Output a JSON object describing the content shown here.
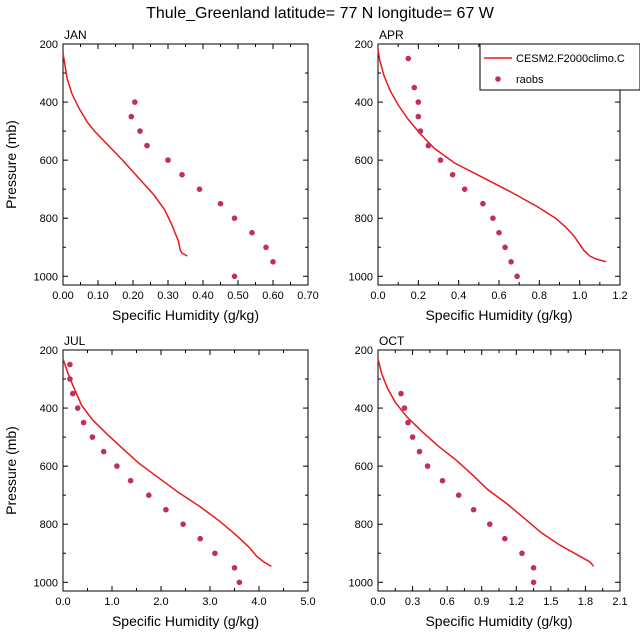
{
  "figure": {
    "title": "Thule_Greenland  latitude= 77 N longitude= 67 W"
  },
  "colors": {
    "model_line": "#e8191c",
    "raobs_marker": "#c0305a",
    "axes": "#000000"
  },
  "legend": {
    "placement": "top-right of APR panel",
    "model_label": "CESM2.F2000climo.C",
    "obs_label": "raobs"
  },
  "chart_data": [
    {
      "type": "line",
      "panel": "JAN",
      "title": "JAN",
      "xlabel": "Specific Humidity (g/kg)",
      "ylabel": "Pressure (mb)",
      "xlim": [
        0,
        0.7
      ],
      "ylim": [
        1030,
        200
      ],
      "y_inverted": true,
      "xticks": [
        "0.00",
        "0.10",
        "0.20",
        "0.30",
        "0.40",
        "0.50",
        "0.60",
        "0.70"
      ],
      "yticks": [
        "200",
        "400",
        "600",
        "800",
        "1000"
      ],
      "series": [
        {
          "name": "CESM2.F2000climo.C",
          "kind": "line",
          "points": [
            [
              0.0,
              230
            ],
            [
              0.005,
              270
            ],
            [
              0.012,
              320
            ],
            [
              0.025,
              370
            ],
            [
              0.045,
              420
            ],
            [
              0.07,
              470
            ],
            [
              0.09,
              500
            ],
            [
              0.13,
              550
            ],
            [
              0.17,
              600
            ],
            [
              0.2,
              640
            ],
            [
              0.23,
              680
            ],
            [
              0.26,
              720
            ],
            [
              0.29,
              770
            ],
            [
              0.31,
              820
            ],
            [
              0.33,
              880
            ],
            [
              0.335,
              910
            ],
            [
              0.34,
              920
            ],
            [
              0.355,
              930
            ]
          ]
        },
        {
          "name": "raobs",
          "kind": "markers",
          "points": [
            [
              0.205,
              400
            ],
            [
              0.195,
              450
            ],
            [
              0.22,
              500
            ],
            [
              0.24,
              550
            ],
            [
              0.3,
              600
            ],
            [
              0.34,
              650
            ],
            [
              0.39,
              700
            ],
            [
              0.45,
              750
            ],
            [
              0.49,
              800
            ],
            [
              0.54,
              850
            ],
            [
              0.58,
              900
            ],
            [
              0.6,
              950
            ],
            [
              0.49,
              1000
            ]
          ]
        }
      ]
    },
    {
      "type": "line",
      "panel": "APR",
      "title": "APR",
      "xlabel": "Specific Humidity (g/kg)",
      "ylabel": "",
      "xlim": [
        0,
        1.2
      ],
      "ylim": [
        1030,
        200
      ],
      "y_inverted": true,
      "xticks": [
        "0.0",
        "0.2",
        "0.4",
        "0.6",
        "0.8",
        "1.0",
        "1.2"
      ],
      "yticks": [
        "200",
        "400",
        "600",
        "800",
        "1000"
      ],
      "series": [
        {
          "name": "CESM2.F2000climo.C",
          "kind": "line",
          "points": [
            [
              0.0,
              220
            ],
            [
              0.01,
              260
            ],
            [
              0.03,
              310
            ],
            [
              0.06,
              360
            ],
            [
              0.1,
              410
            ],
            [
              0.15,
              460
            ],
            [
              0.21,
              510
            ],
            [
              0.28,
              560
            ],
            [
              0.38,
              610
            ],
            [
              0.52,
              660
            ],
            [
              0.66,
              710
            ],
            [
              0.79,
              760
            ],
            [
              0.88,
              800
            ],
            [
              0.93,
              830
            ],
            [
              0.97,
              860
            ],
            [
              1.0,
              890
            ],
            [
              1.02,
              910
            ],
            [
              1.05,
              930
            ],
            [
              1.08,
              940
            ],
            [
              1.13,
              950
            ]
          ]
        },
        {
          "name": "raobs",
          "kind": "markers",
          "points": [
            [
              0.15,
              250
            ],
            [
              0.18,
              350
            ],
            [
              0.2,
              400
            ],
            [
              0.2,
              450
            ],
            [
              0.21,
              500
            ],
            [
              0.25,
              550
            ],
            [
              0.31,
              600
            ],
            [
              0.37,
              650
            ],
            [
              0.43,
              700
            ],
            [
              0.52,
              750
            ],
            [
              0.57,
              800
            ],
            [
              0.6,
              850
            ],
            [
              0.63,
              900
            ],
            [
              0.66,
              950
            ],
            [
              0.69,
              1000
            ]
          ]
        }
      ]
    },
    {
      "type": "line",
      "panel": "JUL",
      "title": "JUL",
      "xlabel": "Specific Humidity (g/kg)",
      "ylabel": "Pressure (mb)",
      "xlim": [
        0,
        5.0
      ],
      "ylim": [
        1030,
        200
      ],
      "y_inverted": true,
      "xticks": [
        "0.0",
        "1.0",
        "2.0",
        "3.0",
        "4.0",
        "5.0"
      ],
      "yticks": [
        "200",
        "400",
        "600",
        "800",
        "1000"
      ],
      "series": [
        {
          "name": "CESM2.F2000climo.C",
          "kind": "line",
          "points": [
            [
              0.0,
              230
            ],
            [
              0.1,
              280
            ],
            [
              0.22,
              330
            ],
            [
              0.38,
              390
            ],
            [
              0.6,
              440
            ],
            [
              0.9,
              490
            ],
            [
              1.22,
              540
            ],
            [
              1.55,
              590
            ],
            [
              1.95,
              640
            ],
            [
              2.35,
              690
            ],
            [
              2.8,
              740
            ],
            [
              3.2,
              790
            ],
            [
              3.55,
              840
            ],
            [
              3.8,
              880
            ],
            [
              3.95,
              910
            ],
            [
              4.1,
              930
            ],
            [
              4.25,
              945
            ]
          ]
        },
        {
          "name": "raobs",
          "kind": "markers",
          "points": [
            [
              0.14,
              250
            ],
            [
              0.14,
              300
            ],
            [
              0.2,
              350
            ],
            [
              0.3,
              400
            ],
            [
              0.42,
              450
            ],
            [
              0.6,
              500
            ],
            [
              0.83,
              550
            ],
            [
              1.1,
              600
            ],
            [
              1.38,
              650
            ],
            [
              1.75,
              700
            ],
            [
              2.1,
              750
            ],
            [
              2.45,
              800
            ],
            [
              2.8,
              850
            ],
            [
              3.1,
              900
            ],
            [
              3.5,
              950
            ],
            [
              3.6,
              1000
            ]
          ]
        }
      ]
    },
    {
      "type": "line",
      "panel": "OCT",
      "title": "OCT",
      "xlabel": "Specific Humidity (g/kg)",
      "ylabel": "",
      "xlim": [
        0,
        2.1
      ],
      "ylim": [
        1030,
        200
      ],
      "y_inverted": true,
      "xticks": [
        "0.0",
        "0.3",
        "0.6",
        "0.9",
        "1.2",
        "1.5",
        "1.8",
        "2.1"
      ],
      "yticks": [
        "200",
        "400",
        "600",
        "800",
        "1000"
      ],
      "series": [
        {
          "name": "CESM2.F2000climo.C",
          "kind": "line",
          "points": [
            [
              0.0,
              230
            ],
            [
              0.03,
              280
            ],
            [
              0.08,
              330
            ],
            [
              0.15,
              380
            ],
            [
              0.25,
              430
            ],
            [
              0.38,
              480
            ],
            [
              0.52,
              530
            ],
            [
              0.68,
              580
            ],
            [
              0.82,
              630
            ],
            [
              0.95,
              680
            ],
            [
              1.12,
              730
            ],
            [
              1.27,
              780
            ],
            [
              1.42,
              830
            ],
            [
              1.57,
              870
            ],
            [
              1.75,
              910
            ],
            [
              1.84,
              930
            ],
            [
              1.87,
              945
            ]
          ]
        },
        {
          "name": "raobs",
          "kind": "markers",
          "points": [
            [
              0.2,
              350
            ],
            [
              0.23,
              400
            ],
            [
              0.26,
              450
            ],
            [
              0.3,
              500
            ],
            [
              0.36,
              550
            ],
            [
              0.43,
              600
            ],
            [
              0.56,
              650
            ],
            [
              0.7,
              700
            ],
            [
              0.83,
              750
            ],
            [
              0.97,
              800
            ],
            [
              1.1,
              850
            ],
            [
              1.25,
              900
            ],
            [
              1.35,
              950
            ],
            [
              1.35,
              1000
            ]
          ]
        }
      ]
    }
  ]
}
